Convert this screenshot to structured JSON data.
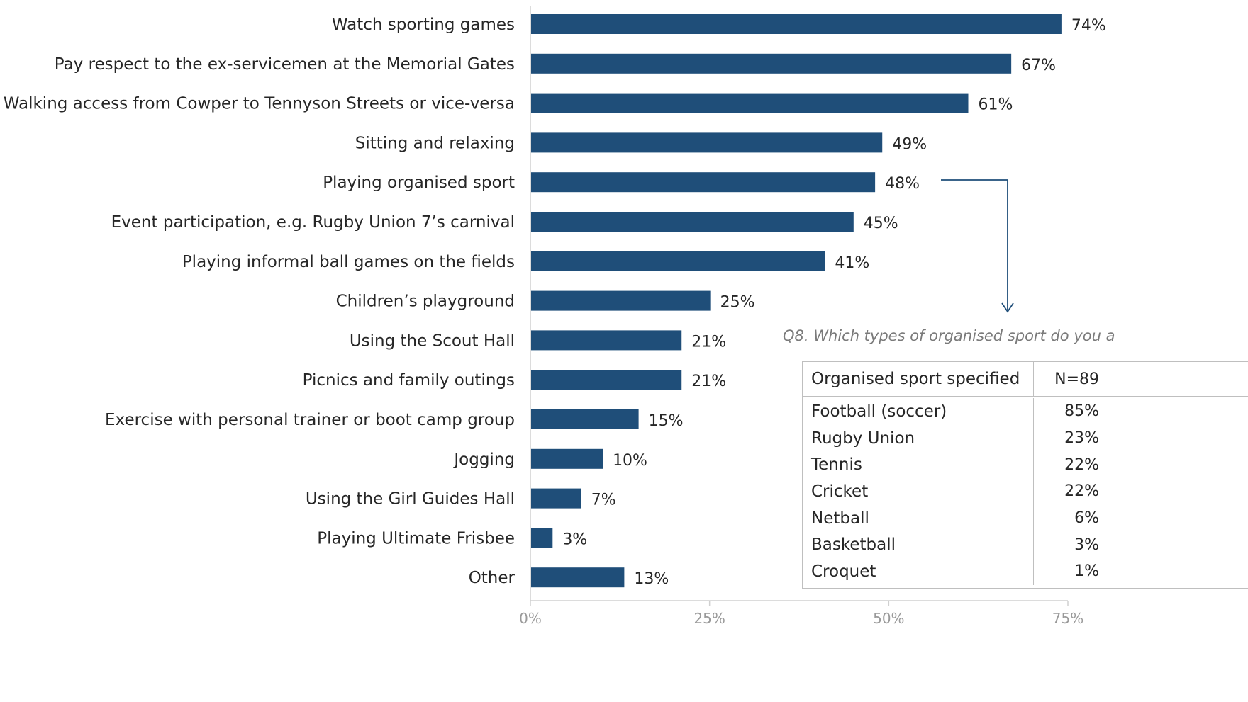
{
  "chart_data": {
    "type": "bar",
    "orientation": "horizontal",
    "categories": [
      "Watch sporting games",
      "Pay respect to the ex-servicemen at the Memorial Gates",
      "Walking access from Cowper to Tennyson Streets or vice-versa",
      "Sitting and relaxing",
      "Playing organised sport",
      "Event participation, e.g. Rugby Union 7’s carnival",
      "Playing informal ball games on the fields",
      "Children’s playground",
      "Using the Scout Hall",
      "Picnics and family outings",
      "Exercise with personal trainer or boot camp group",
      "Jogging",
      "Using the Girl Guides Hall",
      "Playing Ultimate Frisbee",
      "Other"
    ],
    "values": [
      74,
      67,
      61,
      49,
      48,
      45,
      41,
      25,
      21,
      21,
      15,
      10,
      7,
      3,
      13
    ],
    "value_labels": [
      "74%",
      "67%",
      "61%",
      "49%",
      "48%",
      "45%",
      "41%",
      "25%",
      "21%",
      "21%",
      "15%",
      "10%",
      "7%",
      "3%",
      "13%"
    ],
    "xlim": [
      0,
      75
    ],
    "xticks": [
      0,
      25,
      50,
      75
    ],
    "xtick_labels": [
      "0%",
      "25%",
      "50%",
      "75%"
    ],
    "title": "",
    "xlabel": "",
    "ylabel": "",
    "grid": false,
    "bar_color": "#1f4e79"
  },
  "callout": {
    "question": "Q8.  Which types of organised sport do you a",
    "from_category": "Playing organised sport"
  },
  "sport_table": {
    "header": [
      "Organised sport specified",
      "N=89"
    ],
    "rows": [
      {
        "sport": "Football (soccer)",
        "pct": "85%"
      },
      {
        "sport": "Rugby Union",
        "pct": "23%"
      },
      {
        "sport": "Tennis",
        "pct": "22%"
      },
      {
        "sport": "Cricket",
        "pct": "22%"
      },
      {
        "sport": "Netball",
        "pct": "6%"
      },
      {
        "sport": "Basketball",
        "pct": "3%"
      },
      {
        "sport": "Croquet",
        "pct": "1%"
      }
    ]
  }
}
